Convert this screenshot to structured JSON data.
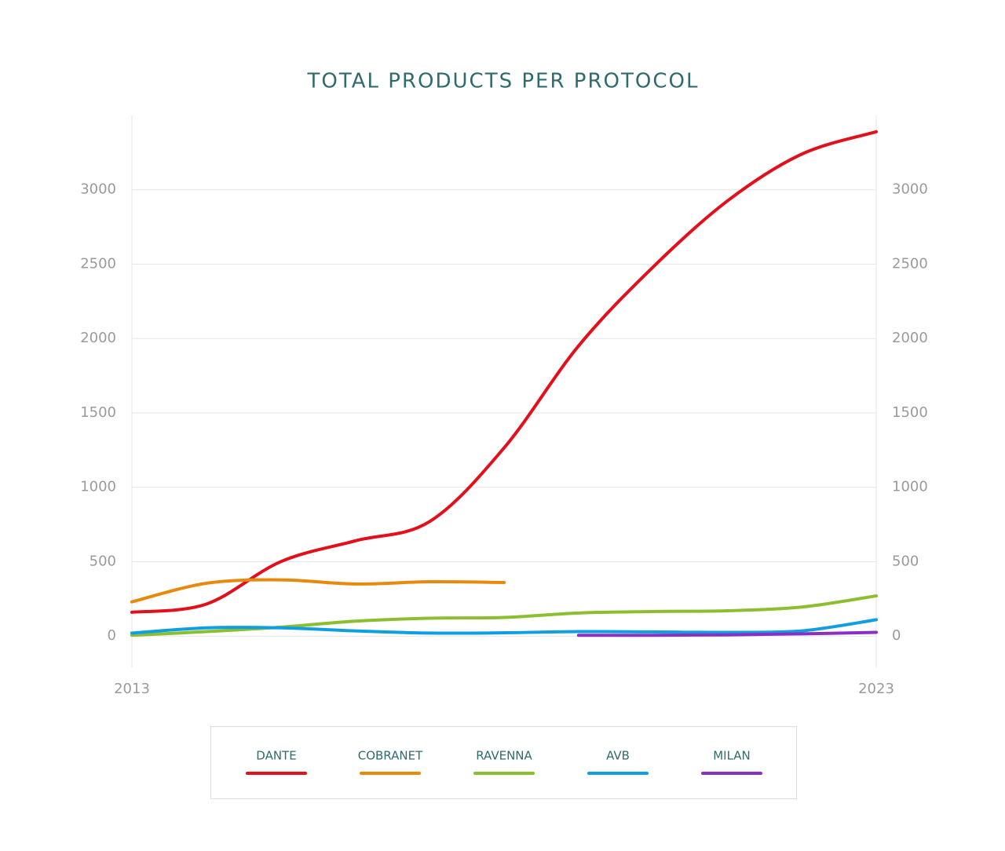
{
  "chart_data": {
    "type": "line",
    "title": "TOTAL PRODUCTS PER PROTOCOL",
    "x": [
      2013,
      2014,
      2015,
      2016,
      2017,
      2018,
      2019,
      2020,
      2021,
      2022,
      2023
    ],
    "xlim": [
      2013,
      2023
    ],
    "xticks": [
      2013,
      2023
    ],
    "ylim": [
      -210,
      3500
    ],
    "yticks": [
      0,
      500,
      1000,
      1500,
      2000,
      2500,
      3000
    ],
    "grid": true,
    "series": [
      {
        "name": "DANTE",
        "color": "#e30f1b",
        "values": [
          160,
          215,
          500,
          640,
          770,
          1265,
          1950,
          2480,
          2925,
          3240,
          3390
        ]
      },
      {
        "name": "COBRANET",
        "color": "#e8890c",
        "values": [
          230,
          355,
          378,
          350,
          365,
          360,
          null,
          null,
          null,
          null,
          null
        ]
      },
      {
        "name": "RAVENNA",
        "color": "#8cbf2f",
        "values": [
          5,
          30,
          60,
          100,
          120,
          125,
          155,
          165,
          170,
          195,
          270
        ]
      },
      {
        "name": "AVB",
        "color": "#0f9ee0",
        "values": [
          20,
          55,
          55,
          35,
          20,
          22,
          30,
          28,
          25,
          35,
          110
        ]
      },
      {
        "name": "MILAN",
        "color": "#8a2fc4",
        "values": [
          null,
          null,
          null,
          null,
          null,
          null,
          5,
          5,
          8,
          15,
          25
        ]
      }
    ]
  }
}
